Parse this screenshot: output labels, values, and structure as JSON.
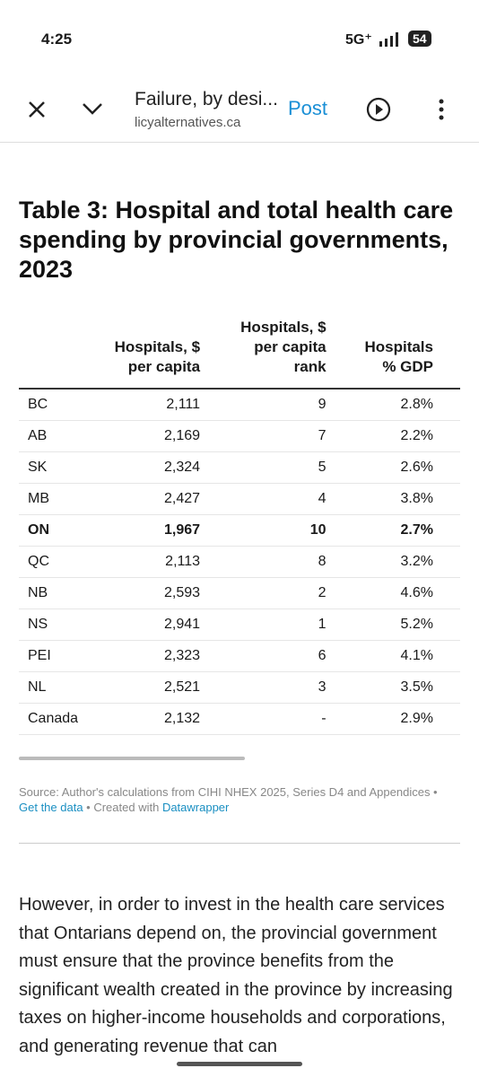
{
  "status_bar": {
    "time": "4:25",
    "network": "5G⁺",
    "battery": "54"
  },
  "toolbar": {
    "title": "Failure, by desi...",
    "url": "licyalternatives.ca",
    "action": "Post"
  },
  "table": {
    "title": "Table 3: Hospital and total health care spending by provincial governments, 2023",
    "headers": [
      "",
      "Hospitals, $ per capita",
      "Hospitals, $ per capita rank",
      "Hospitals % GDP"
    ],
    "rows": [
      [
        "BC",
        "2,111",
        "9",
        "2.8%"
      ],
      [
        "AB",
        "2,169",
        "7",
        "2.2%"
      ],
      [
        "SK",
        "2,324",
        "5",
        "2.6%"
      ],
      [
        "MB",
        "2,427",
        "4",
        "3.8%"
      ],
      [
        "ON",
        "1,967",
        "10",
        "2.7%"
      ],
      [
        "QC",
        "2,113",
        "8",
        "3.2%"
      ],
      [
        "NB",
        "2,593",
        "2",
        "4.6%"
      ],
      [
        "NS",
        "2,941",
        "1",
        "5.2%"
      ],
      [
        "PEI",
        "2,323",
        "6",
        "4.1%"
      ],
      [
        "NL",
        "2,521",
        "3",
        "3.5%"
      ],
      [
        "Canada",
        "2,132",
        "-",
        "2.9%"
      ]
    ],
    "bold_row": 4,
    "source": "Source: Author's calculations from CIHI NHEX 2025, Series D4 and Appendices • ",
    "data_link": "Get the data",
    "created": " • Created with ",
    "tool_link": "Datawrapper"
  },
  "paragraph": "However, in order to invest in the health care services that Ontarians depend on, the provincial government must ensure that the province benefits from the significant wealth created in the province by increasing taxes on higher-income households and corporations, and generating revenue that can"
}
